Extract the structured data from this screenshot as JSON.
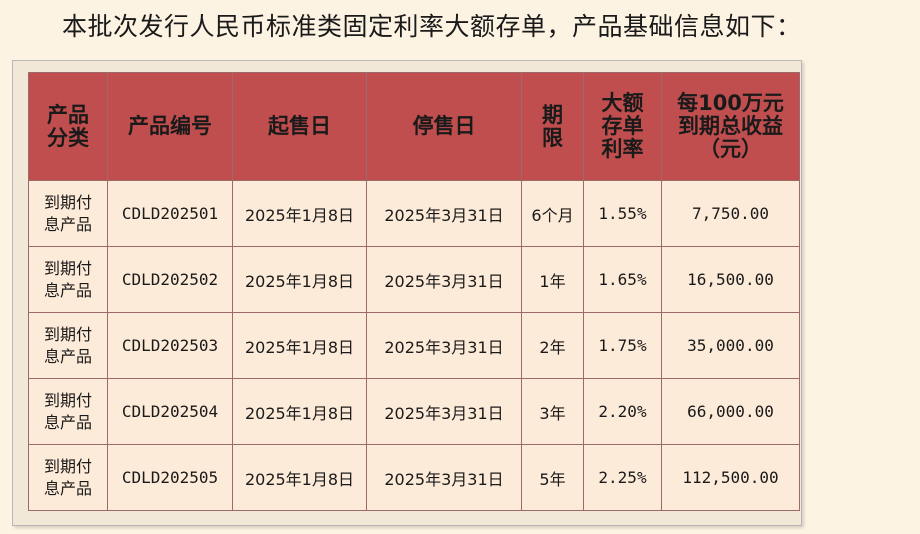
{
  "intro_text": "本批次发行人民币标准类固定利率大额存单，产品基础信息如下：",
  "table": {
    "headers": {
      "category": "产品分类",
      "code": "产品编号",
      "start": "起售日",
      "end": "停售日",
      "term": "期限",
      "rate": "大额存单利率",
      "yield": "每100万元到期总收益（元）"
    },
    "rows": [
      {
        "category": "到期付息产品",
        "code": "CDLD202501",
        "start": "2025年1月8日",
        "end": "2025年3月31日",
        "term": "6个月",
        "rate": "1.55%",
        "yield": "7,750.00"
      },
      {
        "category": "到期付息产品",
        "code": "CDLD202502",
        "start": "2025年1月8日",
        "end": "2025年3月31日",
        "term": "1年",
        "rate": "1.65%",
        "yield": "16,500.00"
      },
      {
        "category": "到期付息产品",
        "code": "CDLD202503",
        "start": "2025年1月8日",
        "end": "2025年3月31日",
        "term": "2年",
        "rate": "1.75%",
        "yield": "35,000.00"
      },
      {
        "category": "到期付息产品",
        "code": "CDLD202504",
        "start": "2025年1月8日",
        "end": "2025年3月31日",
        "term": "3年",
        "rate": "2.20%",
        "yield": "66,000.00"
      },
      {
        "category": "到期付息产品",
        "code": "CDLD202505",
        "start": "2025年1月8日",
        "end": "2025年3月31日",
        "term": "5年",
        "rate": "2.25%",
        "yield": "112,500.00"
      }
    ]
  },
  "colors": {
    "page_background": "#fdf3e3",
    "header_background": "#c14e4e",
    "cell_background": "#fdebd9",
    "border": "#9c6a6a"
  }
}
